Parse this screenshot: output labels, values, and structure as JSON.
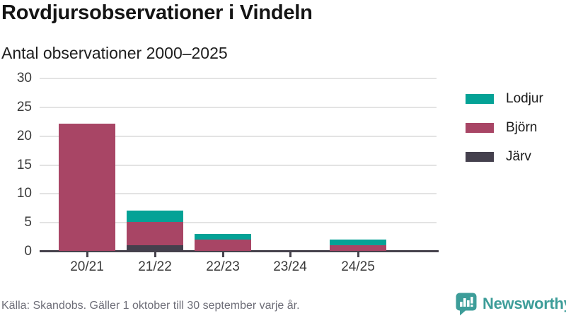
{
  "title": "Rovdjursobservationer i Vindeln",
  "subtitle": "Antal observationer 2000–2025",
  "footer": {
    "source": "Källa: Skandobs. Gäller 1 oktober till 30 september varje år."
  },
  "logo": {
    "text": "Newsworthy",
    "icon": "bar-chart-speech-bubble-icon",
    "color": "#3d9d99"
  },
  "colors": {
    "background": "#ffffff",
    "gridline": "#e3e3e3",
    "axis": "#46424c",
    "text_dark": "#141414",
    "text_tick": "#3a3a3a",
    "text_muted": "#6e6e78"
  },
  "chart_data": {
    "type": "bar",
    "stacked": true,
    "title": "Rovdjursobservationer i Vindeln",
    "subtitle": "Antal observationer 2000–2025",
    "categories": [
      "20/21",
      "21/22",
      "22/23",
      "23/24",
      "24/25"
    ],
    "series": [
      {
        "name": "Lodjur",
        "color": "#04a296",
        "values": [
          0,
          2,
          1,
          0,
          1
        ]
      },
      {
        "name": "Björn",
        "color": "#a84565",
        "values": [
          22,
          4,
          2,
          0,
          1
        ]
      },
      {
        "name": "Järv",
        "color": "#44404d",
        "values": [
          0,
          1,
          0,
          0,
          0
        ]
      }
    ],
    "stack_order_bottom_to_top": [
      "Järv",
      "Björn",
      "Lodjur"
    ],
    "xlabel": "",
    "ylabel": "",
    "ylim": [
      0,
      30
    ],
    "yticks": [
      0,
      5,
      10,
      15,
      20,
      25,
      30
    ],
    "grid": true,
    "legend_position": "right"
  }
}
